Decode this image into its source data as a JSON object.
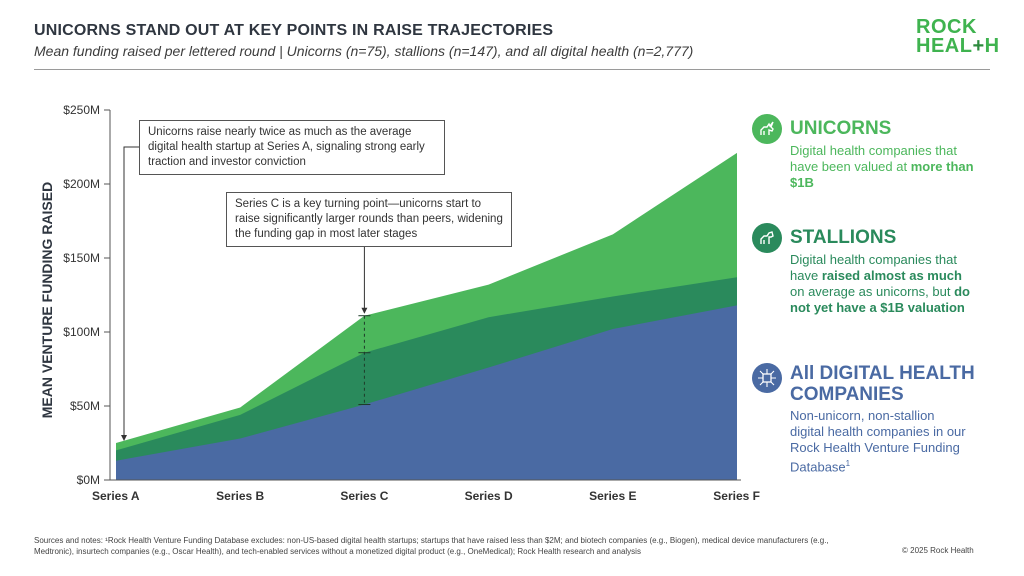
{
  "header": {
    "title": "UNICORNS STAND OUT AT KEY POINTS IN RAISE TRAJECTORIES",
    "subtitle": "Mean funding raised per lettered round | Unicorns (n=75), stallions (n=147), and all digital health (n=2,777)"
  },
  "logo": {
    "line1": "ROCK",
    "line2_a": "HEAL",
    "line2_plus": "+",
    "line2_b": "H"
  },
  "chart_data": {
    "type": "area",
    "stacked": false,
    "categories": [
      "Series A",
      "Series B",
      "Series C",
      "Series D",
      "Series E",
      "Series F"
    ],
    "ylabel": "MEAN VENTURE FUNDING RAISED",
    "ylim": [
      0,
      250
    ],
    "yticks": [
      0,
      50,
      100,
      150,
      200,
      250
    ],
    "ytick_labels": [
      "$0M",
      "$50M",
      "$100M",
      "$150M",
      "$200M",
      "$250M"
    ],
    "grid": false,
    "series": [
      {
        "name": "UNICORNS",
        "color": "#4cb75c",
        "values": [
          25,
          49,
          111,
          132,
          166,
          221
        ]
      },
      {
        "name": "STALLIONS",
        "color": "#2a8a5c",
        "values": [
          20,
          44,
          86,
          110,
          124,
          137
        ]
      },
      {
        "name": "All DIGITAL HEALTH COMPANIES",
        "color": "#4a6aa3",
        "values": [
          13,
          28,
          51,
          76,
          102,
          118
        ]
      }
    ],
    "annotations": [
      "Unicorns raise nearly twice as much as the average digital health startup at Series A, signaling strong early traction and investor conviction",
      "Series C is a key turning point—unicorns start to raise significantly larger rounds than peers, widening the funding gap in most later stages"
    ]
  },
  "legend": {
    "unicorns": {
      "heading": "UNICORNS",
      "text_1": "Digital health companies that have been valued at ",
      "bold_1": "more than $1B",
      "color": "#4cb75c",
      "icon": "unicorn-icon"
    },
    "stallions": {
      "heading": "STALLIONS",
      "text_1": "Digital health companies that have ",
      "bold_1": "raised almost as much",
      "text_2": " on average as unicorns, but ",
      "bold_2": "do not yet have a $1B valuation",
      "color": "#2a8a5c",
      "icon": "horse-icon"
    },
    "all": {
      "heading": "All DIGITAL HEALTH COMPANIES",
      "text_1": "Non-unicorn, non-stallion digital health companies in our Rock Health Venture Funding Database",
      "sup": "1",
      "color": "#4a6aa3",
      "icon": "circuit-icon"
    }
  },
  "footer": {
    "notes": "Sources and notes: ¹Rock Health Venture Funding Database excludes: non-US-based digital health startups; startups that have raised less than $2M; and biotech companies (e.g., Biogen), medical device manufacturers (e.g., Medtronic), insurtech companies (e.g., Oscar Health), and tech-enabled services without a monetized digital product (e.g., OneMedical); Rock Health research and analysis",
    "copyright": "© 2025 Rock Health"
  }
}
